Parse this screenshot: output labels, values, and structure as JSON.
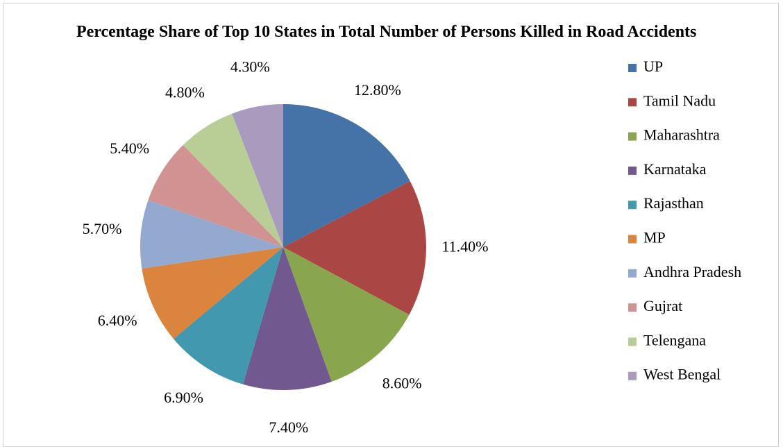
{
  "chart_data": {
    "type": "pie",
    "title": "Percentage Share of Top 10 States in Total Number of Persons Killed in Road Accidents",
    "categories": [
      "UP",
      "Tamil Nadu",
      "Maharashtra",
      "Karnataka",
      "Rajasthan",
      "MP",
      "Andhra Pradesh",
      "Gujrat",
      "Telengana",
      "West Bengal"
    ],
    "values": [
      12.8,
      11.4,
      8.6,
      7.4,
      6.9,
      6.4,
      5.7,
      5.4,
      4.8,
      4.3
    ],
    "value_labels": [
      "12.80%",
      "11.40%",
      "8.60%",
      "7.40%",
      "6.90%",
      "6.40%",
      "5.70%",
      "5.40%",
      "4.80%",
      "4.30%"
    ],
    "colors": [
      "#4572a7",
      "#aa4643",
      "#89a54e",
      "#71588f",
      "#4198af",
      "#db843d",
      "#93a9cf",
      "#d19392",
      "#b9cd96",
      "#a99bbd"
    ],
    "legend": "right"
  }
}
